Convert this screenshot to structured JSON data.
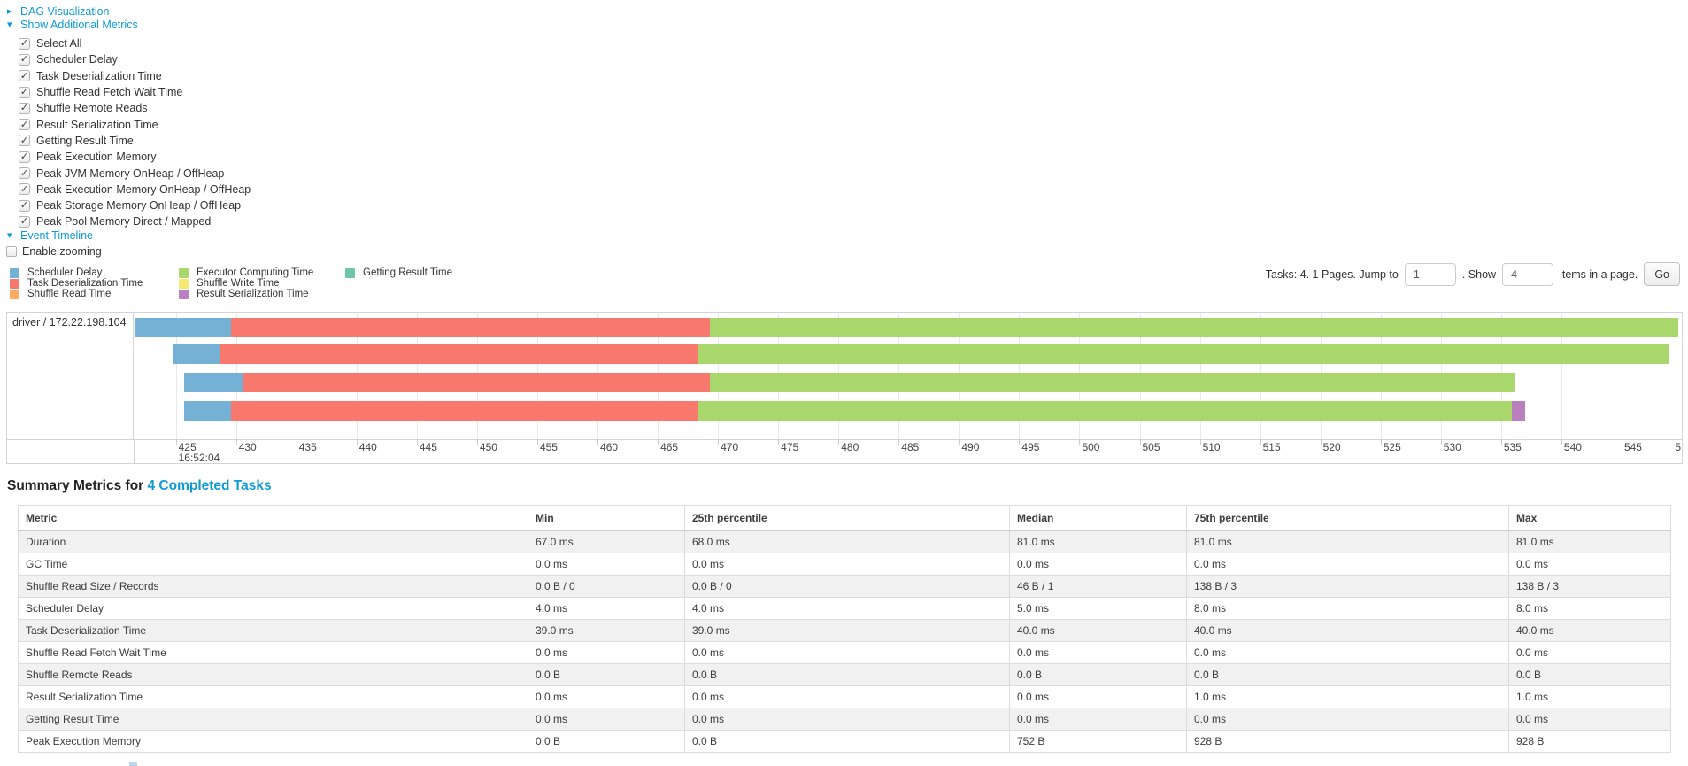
{
  "dag_section": {
    "label": "DAG Visualization",
    "arrow": "▸"
  },
  "metrics_section": {
    "label": "Show Additional Metrics",
    "arrow": "▾",
    "checkboxes": [
      {
        "label": "Select All",
        "checked": true
      },
      {
        "label": "Scheduler Delay",
        "checked": true
      },
      {
        "label": "Task Deserialization Time",
        "checked": true
      },
      {
        "label": "Shuffle Read Fetch Wait Time",
        "checked": true
      },
      {
        "label": "Shuffle Remote Reads",
        "checked": true
      },
      {
        "label": "Result Serialization Time",
        "checked": true
      },
      {
        "label": "Getting Result Time",
        "checked": true
      },
      {
        "label": "Peak Execution Memory",
        "checked": true
      },
      {
        "label": "Peak JVM Memory OnHeap / OffHeap",
        "checked": true
      },
      {
        "label": "Peak Execution Memory OnHeap / OffHeap",
        "checked": true
      },
      {
        "label": "Peak Storage Memory OnHeap / OffHeap",
        "checked": true
      },
      {
        "label": "Peak Pool Memory Direct / Mapped",
        "checked": true
      }
    ]
  },
  "timeline_section": {
    "label": "Event Timeline",
    "arrow": "▾",
    "enable_zooming_label": "Enable zooming",
    "enable_zooming_checked": false
  },
  "legend": {
    "columns": [
      [
        {
          "key": "scheduler_delay",
          "label": "Scheduler Delay"
        },
        {
          "key": "task_deserialization",
          "label": "Task Deserialization Time"
        },
        {
          "key": "shuffle_read",
          "label": "Shuffle Read Time"
        }
      ],
      [
        {
          "key": "executor_computing",
          "label": "Executor Computing Time"
        },
        {
          "key": "shuffle_write",
          "label": "Shuffle Write Time"
        },
        {
          "key": "result_serialization",
          "label": "Result Serialization Time"
        }
      ],
      [
        {
          "key": "getting_result",
          "label": "Getting Result Time"
        }
      ]
    ]
  },
  "pagination": {
    "tasks_label": "Tasks: 4. 1 Pages. Jump to",
    "jump_value": "1",
    "show_label": ". Show",
    "show_value": "4",
    "items_label": "items in a page.",
    "go_label": "Go"
  },
  "chart_data": {
    "type": "timeline",
    "group_label": "driver / 172.22.198.104",
    "axis": {
      "min": 421.5,
      "max": 550,
      "tick_start": 425,
      "tick_step": 5,
      "tick_end": 545,
      "edge_label": "5",
      "time_label": "16:52:04",
      "time_label_at": 425
    },
    "colors": {
      "scheduler_delay": "#74b1d4",
      "task_deserialization": "#f8786e",
      "shuffle_read": "#fcab60",
      "executor_computing": "#a9d76c",
      "shuffle_write": "#f6e76f",
      "result_serialization": "#ba80be",
      "getting_result": "#6fc5a8"
    },
    "tasks": [
      {
        "start": 421.6,
        "segments": [
          [
            "scheduler_delay",
            429.6
          ],
          [
            "task_deserialization",
            469.3
          ],
          [
            "executor_computing",
            549.7
          ]
        ]
      },
      {
        "start": 424.7,
        "segments": [
          [
            "scheduler_delay",
            428.6
          ],
          [
            "task_deserialization",
            468.4
          ],
          [
            "executor_computing",
            549.0
          ]
        ]
      },
      {
        "start": 425.7,
        "segments": [
          [
            "scheduler_delay",
            430.6
          ],
          [
            "task_deserialization",
            469.3
          ],
          [
            "executor_computing",
            536.1
          ]
        ]
      },
      {
        "start": 425.7,
        "segments": [
          [
            "scheduler_delay",
            429.6
          ],
          [
            "task_deserialization",
            468.4
          ],
          [
            "executor_computing",
            535.9
          ],
          [
            "result_serialization",
            537.0
          ]
        ]
      }
    ]
  },
  "summary": {
    "title_prefix": "Summary Metrics for ",
    "title_link": "4 Completed Tasks",
    "table": {
      "headers": [
        "Metric",
        "Min",
        "25th percentile",
        "Median",
        "75th percentile",
        "Max"
      ],
      "rows": [
        [
          "Duration",
          "67.0 ms",
          "68.0 ms",
          "81.0 ms",
          "81.0 ms",
          "81.0 ms"
        ],
        [
          "GC Time",
          "0.0 ms",
          "0.0 ms",
          "0.0 ms",
          "0.0 ms",
          "0.0 ms"
        ],
        [
          "Shuffle Read Size / Records",
          "0.0 B / 0",
          "0.0 B / 0",
          "46 B / 1",
          "138 B / 3",
          "138 B / 3"
        ],
        [
          "Scheduler Delay",
          "4.0 ms",
          "4.0 ms",
          "5.0 ms",
          "8.0 ms",
          "8.0 ms"
        ],
        [
          "Task Deserialization Time",
          "39.0 ms",
          "39.0 ms",
          "40.0 ms",
          "40.0 ms",
          "40.0 ms"
        ],
        [
          "Shuffle Read Fetch Wait Time",
          "0.0 ms",
          "0.0 ms",
          "0.0 ms",
          "0.0 ms",
          "0.0 ms"
        ],
        [
          "Shuffle Remote Reads",
          "0.0 B",
          "0.0 B",
          "0.0 B",
          "0.0 B",
          "0.0 B"
        ],
        [
          "Result Serialization Time",
          "0.0 ms",
          "0.0 ms",
          "0.0 ms",
          "1.0 ms",
          "1.0 ms"
        ],
        [
          "Getting Result Time",
          "0.0 ms",
          "0.0 ms",
          "0.0 ms",
          "0.0 ms",
          "0.0 ms"
        ],
        [
          "Peak Execution Memory",
          "0.0 B",
          "0.0 B",
          "752 B",
          "928 B",
          "928 B"
        ]
      ]
    }
  }
}
